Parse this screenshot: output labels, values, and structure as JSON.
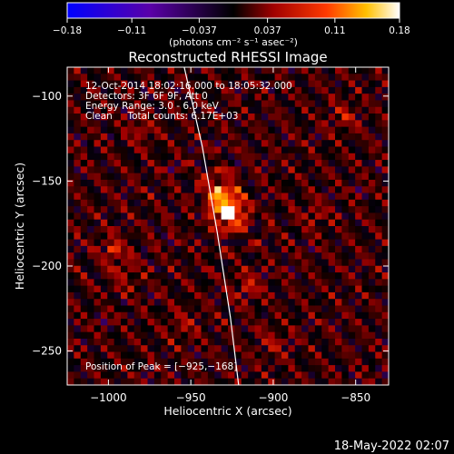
{
  "chart_data": {
    "type": "heatmap",
    "title": "Reconstructed RHESSI Image",
    "xlabel": "Heliocentric X (arcsec)",
    "ylabel": "Heliocentric Y (arcsec)",
    "xlim": [
      -1025,
      -830
    ],
    "ylim": [
      -270,
      -83
    ],
    "x_ticks": [
      -1000,
      -950,
      -900,
      -850
    ],
    "x_tick_labels": [
      "−1000",
      "−950",
      "−900",
      "−850"
    ],
    "y_ticks": [
      -100,
      -150,
      -200,
      -250
    ],
    "y_tick_labels": [
      "−100",
      "−150",
      "−200",
      "−250"
    ],
    "colorbar": {
      "range": [
        -0.18,
        0.18
      ],
      "ticks": [
        -0.18,
        -0.11,
        -0.037,
        0.037,
        0.11,
        0.18
      ],
      "tick_labels": [
        "−0.18",
        "−0.11",
        "−0.037",
        "0.037",
        "0.11",
        "0.18"
      ],
      "units_label": "(photons cm⁻² s⁻¹ asec⁻²)"
    },
    "annotations": [
      "12-Oct-2014 18:02:16.000 to 18:05:32.000",
      "Detectors: 3F 6F 9F, Att 0",
      "Energy Range: 3.0 - 6.0 keV",
      "Clean     Total counts: 6.17E+03"
    ],
    "peak_label": "Position of Peak = [−925,−168]",
    "peak": {
      "x": -925,
      "y": -168,
      "value": 0.18
    },
    "sources": [
      {
        "x": -927,
        "y": -168,
        "amp": 0.18,
        "sigma": 6
      },
      {
        "x": -933,
        "y": -156,
        "amp": 0.09,
        "sigma": 6
      },
      {
        "x": -997,
        "y": -190,
        "amp": 0.08,
        "sigma": 4
      },
      {
        "x": -915,
        "y": -212,
        "amp": 0.05,
        "sigma": 5
      },
      {
        "x": -857,
        "y": -112,
        "amp": 0.045,
        "sigma": 5
      },
      {
        "x": -980,
        "y": -120,
        "amp": 0.04,
        "sigma": 5
      },
      {
        "x": -990,
        "y": -205,
        "amp": 0.035,
        "sigma": 6
      },
      {
        "x": -875,
        "y": -170,
        "amp": 0.035,
        "sigma": 5
      },
      {
        "x": -900,
        "y": -245,
        "amp": 0.03,
        "sigma": 6
      },
      {
        "x": -955,
        "y": -235,
        "amp": 0.03,
        "sigma": 6
      }
    ],
    "limb": [
      {
        "x": -954,
        "y": -83
      },
      {
        "x": -943,
        "y": -130
      },
      {
        "x": -934,
        "y": -180
      },
      {
        "x": -926,
        "y": -230
      },
      {
        "x": -921,
        "y": -270
      }
    ],
    "grid": false
  },
  "footer": {
    "timestamp": "18-May-2022 02:07"
  }
}
